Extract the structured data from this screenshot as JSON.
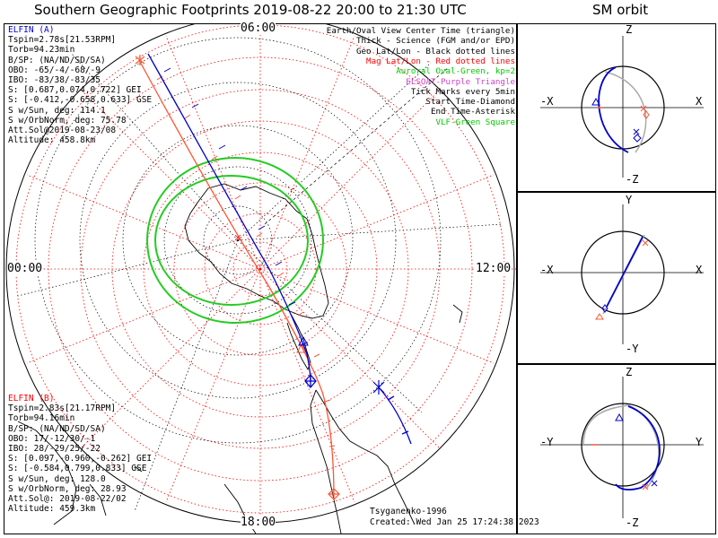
{
  "title": "Southern Geographic Footprints 2019-08-22 20:00 to 21:30 UTC",
  "sm_title": "SM orbit",
  "hours": {
    "top": "06:00",
    "left": "00:00",
    "right": "12:00",
    "bottom": "18:00"
  },
  "legend": [
    {
      "text": "Earth/Oval View Center Time (triangle)",
      "color": "#000000"
    },
    {
      "text": "Thick - Science (FGM and/or EPD)",
      "color": "#000000"
    },
    {
      "text": "Geo Lat/Lon - Black dotted lines",
      "color": "#000000"
    },
    {
      "text": "Mag Lat/Lon - Red dotted lines",
      "color": "#ff0000"
    },
    {
      "text": "Auroral Oval-Green, kp=2",
      "color": "#00cc00"
    },
    {
      "text": "ELSOAT-Purple Triangle",
      "color": "#cc44cc"
    },
    {
      "text": "Tick Marks every 5min",
      "color": "#000000"
    },
    {
      "text": "Start Time-Diamond",
      "color": "#000000"
    },
    {
      "text": "End Time-Asterisk",
      "color": "#000000"
    },
    {
      "text": "VLF-Green Square",
      "color": "#00cc00"
    }
  ],
  "elfin_a": {
    "name": "ELFIN (A)",
    "color": "#0000cc",
    "lines": [
      "Tspin=2.78s[21.53RPM]",
      "Torb=94.23min",
      "B/SP: (NA/ND/SD/SA)",
      "OBO: -65/-4/-68/-9",
      "IBO: -83/38/-83/35",
      "S: [0.687,0.074,0.722] GEI",
      "S: [-0.412,-0.658,0.633] GSE",
      "S w/Sun, deg: 114.1",
      "S w/OrbNorm, deg: 75.78",
      "Att.Sol@2019-08-23/08",
      "Altitude: 458.8km"
    ]
  },
  "elfin_b": {
    "name": "ELFIN (B)",
    "color": "#ff0000",
    "lines": [
      "Tspin=2.83s[21.17RPM]",
      "Torb=94.16min",
      "B/SP: (NA/ND/SD/SA)",
      "OBO: 17/-12/30/-1",
      "IBO: 28/-29/25/-22",
      "S: [0.097,-0.960,-0.262] GEI",
      "S: [-0.584,0.799,0.833] GSE",
      "S w/Sun, deg: 128.0",
      "S w/OrbNorm, deg: 28.93",
      "Att.Sol@: 2019-08-22/02",
      "Altitude: 459.3km"
    ]
  },
  "credits": {
    "author": "Tsyganenko-1996",
    "created": "Created: Wed Jan 25 17:24:38 2023"
  },
  "sm_panels": [
    {
      "axes": {
        "top": "Z",
        "bottom": "-Z",
        "left": "-X",
        "right": "X"
      }
    },
    {
      "axes": {
        "top": "Y",
        "bottom": "-Y",
        "left": "-X",
        "right": "X"
      }
    },
    {
      "axes": {
        "top": "Z",
        "bottom": "-Z",
        "left": "-Y",
        "right": "Y"
      }
    }
  ],
  "chart_data": {
    "type": "polar-map",
    "projection": "southern hemisphere polar view",
    "colors": {
      "elfin_a": "#0000cc",
      "elfin_b": "#ff5533",
      "oval": "#22cc22",
      "mag_grid": "#ff0000",
      "geo_grid": "#000000"
    }
  }
}
